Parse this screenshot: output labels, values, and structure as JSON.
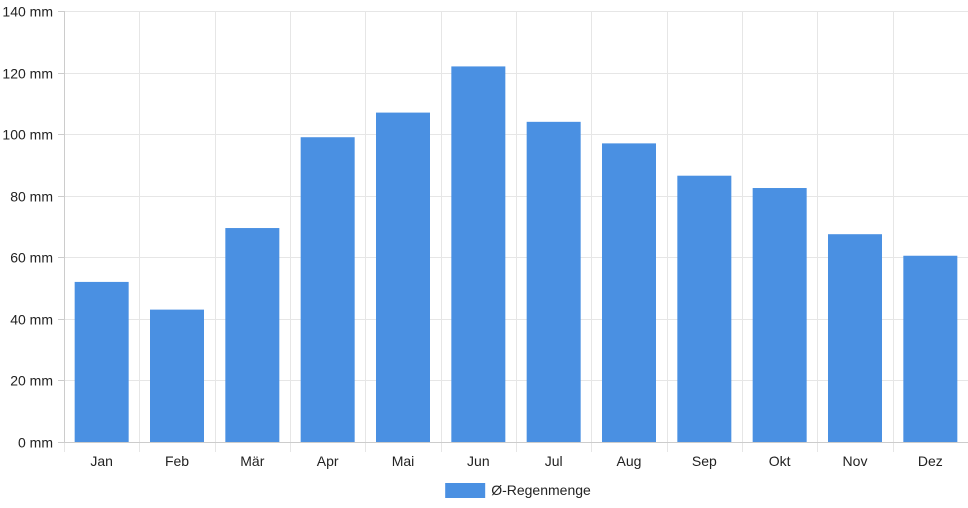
{
  "chart_data": {
    "type": "bar",
    "categories": [
      "Jan",
      "Feb",
      "Mär",
      "Apr",
      "Mai",
      "Jun",
      "Jul",
      "Aug",
      "Sep",
      "Okt",
      "Nov",
      "Dez"
    ],
    "series": [
      {
        "name": "Ø-Regenmenge",
        "values": [
          52,
          43,
          69.5,
          99,
          107,
          122,
          104,
          97,
          86.5,
          82.5,
          67.5,
          60.5
        ]
      }
    ],
    "ylim": [
      0,
      140
    ],
    "ytick_step": 20,
    "ytick_labels": [
      "0 mm",
      "20 mm",
      "40 mm",
      "60 mm",
      "80 mm",
      "100 mm",
      "120 mm",
      "140 mm"
    ],
    "grid": true,
    "legend": "bottom-center",
    "colors": {
      "bar": "#4a90e2",
      "grid": "#e6e6e6",
      "axis": "#cccccc"
    }
  }
}
